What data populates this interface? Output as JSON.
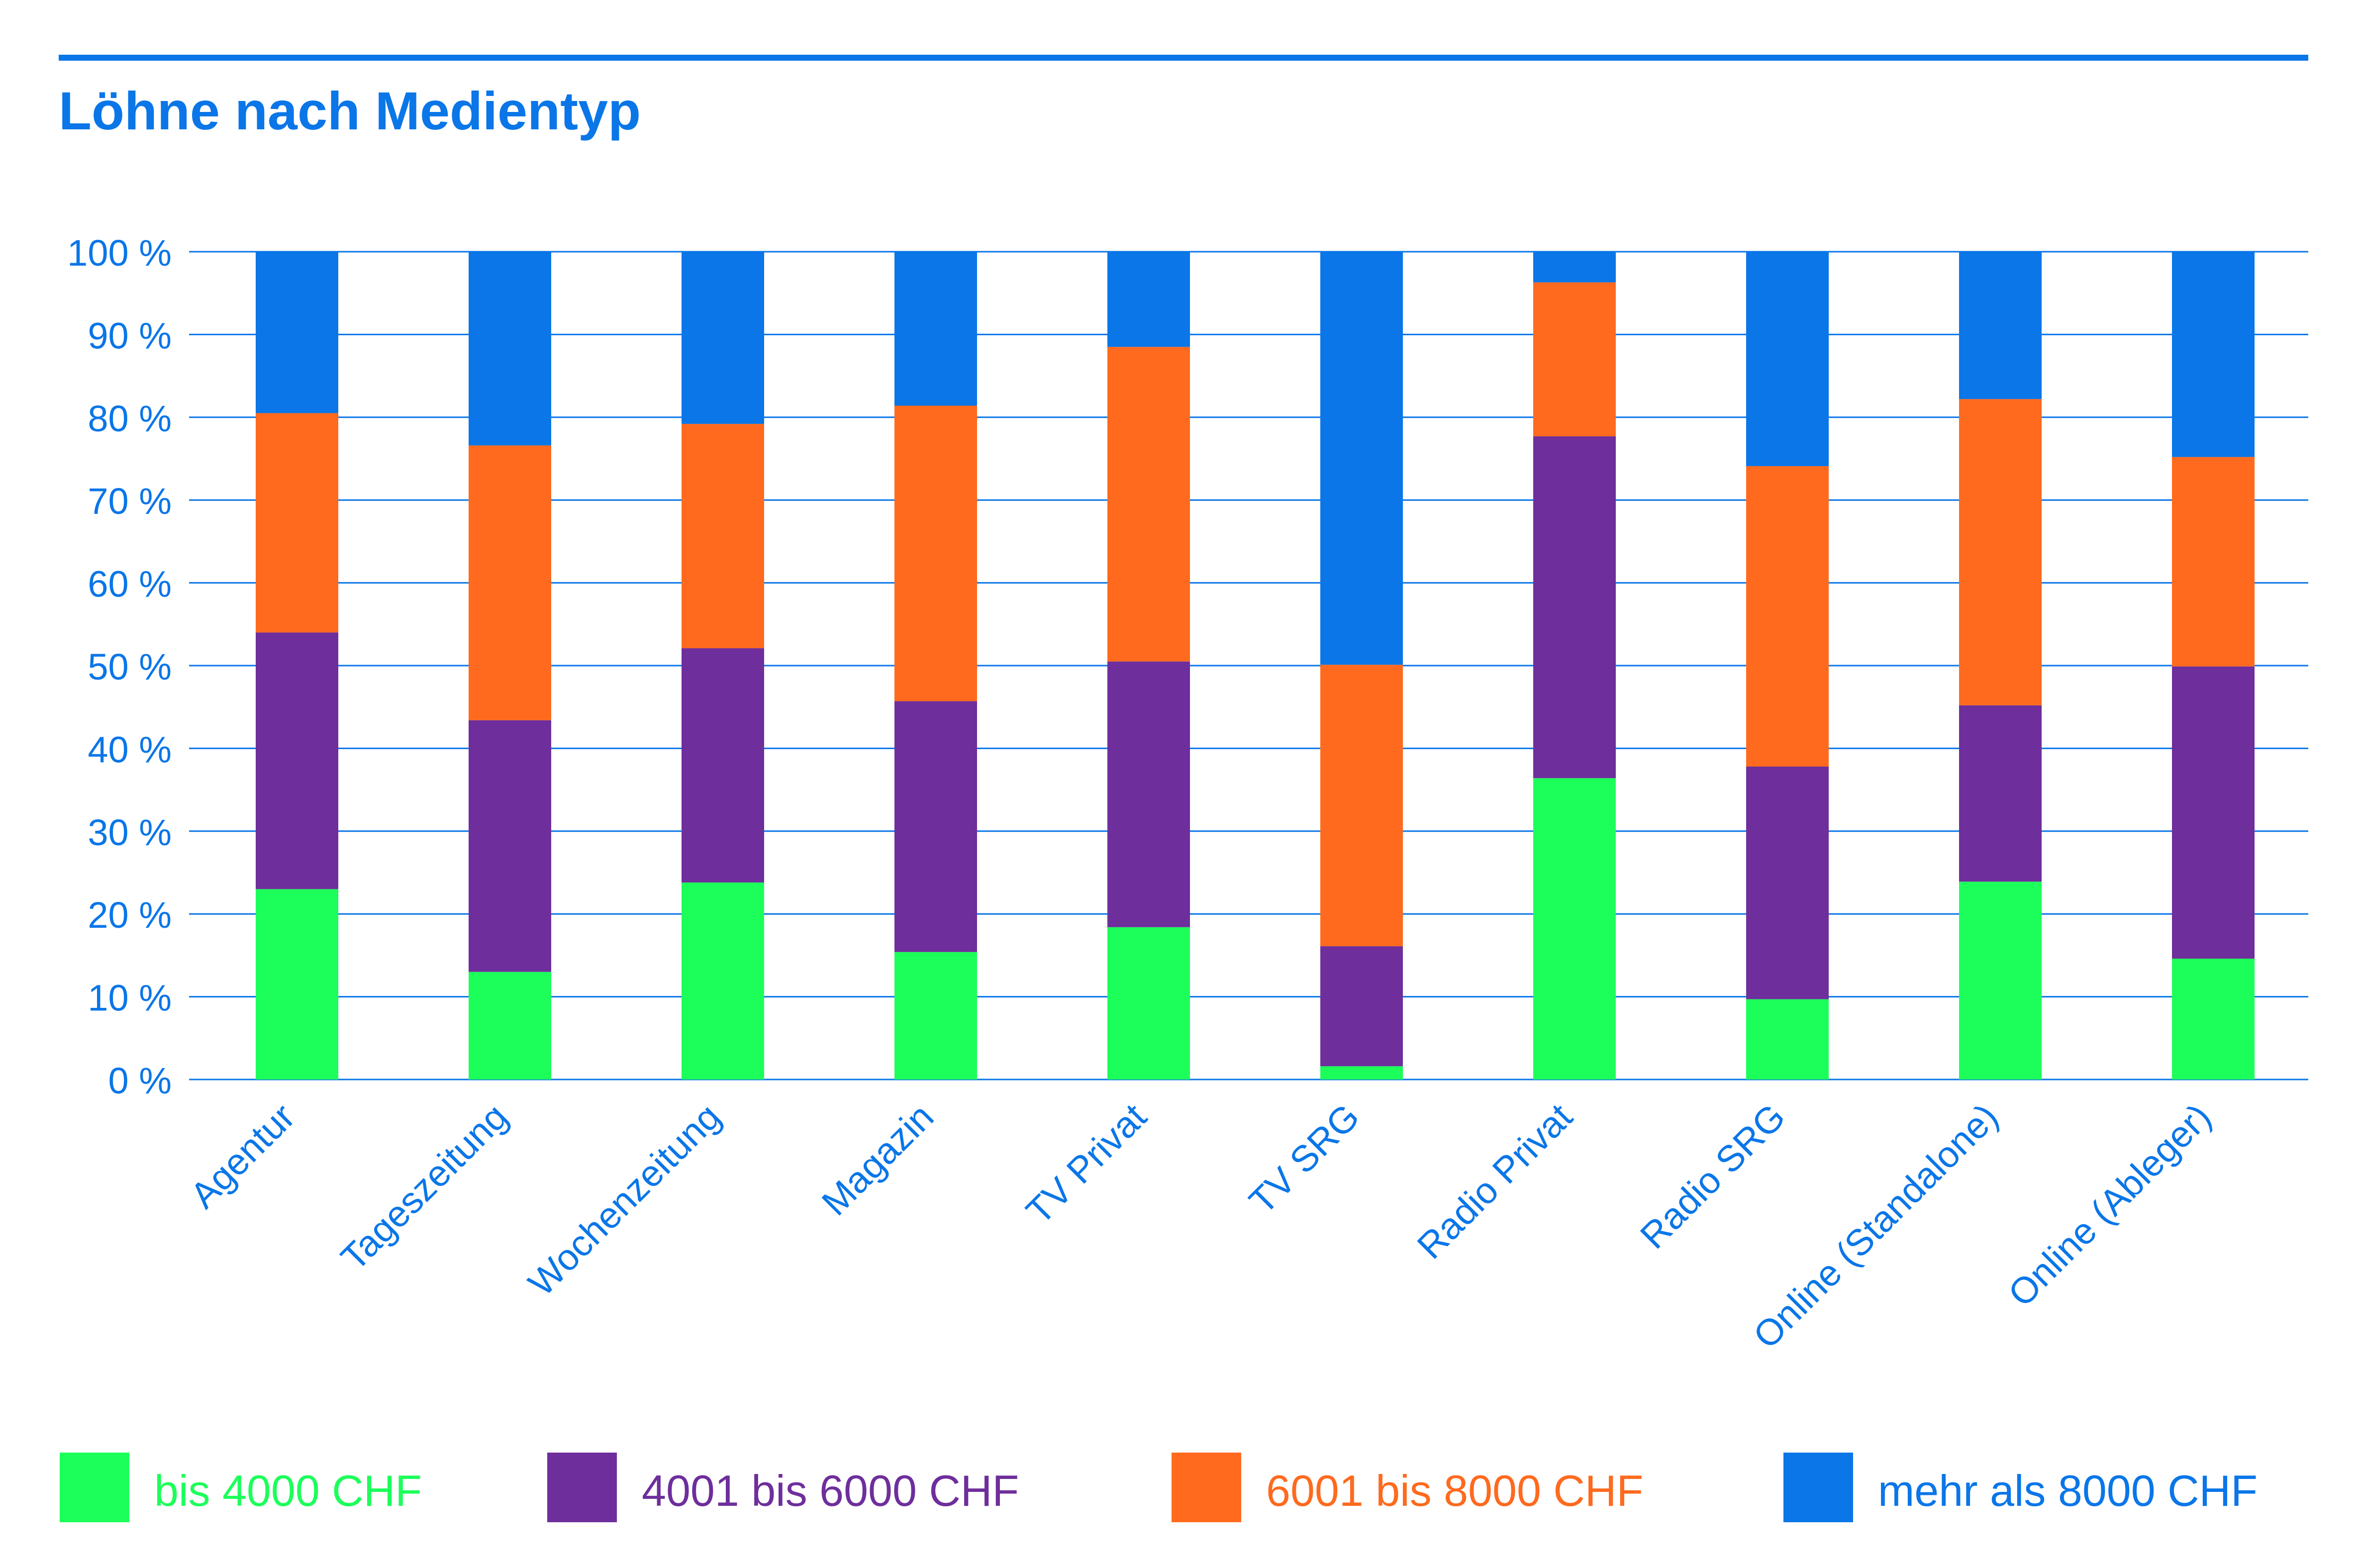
{
  "title": "Löhne nach Medientyp",
  "colors": {
    "accent": "#0A76E8",
    "series": [
      "#1CFF5A",
      "#6E2E9C",
      "#FF6A1E",
      "#0A76E8"
    ]
  },
  "chart_data": {
    "type": "bar",
    "stacked": true,
    "title": "Löhne nach Medientyp",
    "xlabel": "",
    "ylabel": "",
    "ylim": [
      0,
      100
    ],
    "y_ticks": [
      "0 %",
      "10 %",
      "20 %",
      "30 %",
      "40 %",
      "50 %",
      "60 %",
      "70 %",
      "80 %",
      "90 %",
      "100 %"
    ],
    "grid": true,
    "legend_position": "bottom",
    "categories": [
      "Agentur",
      "Tageszeitung",
      "Wochenzeitung",
      "Magazin",
      "TV Privat",
      "TV SRG",
      "Radio Privat",
      "Radio SRG",
      "Online (Standalone)",
      "Online (Ableger)"
    ],
    "series": [
      {
        "name": "bis 4000 CHF",
        "color": "#1CFF5A",
        "values": [
          23.0,
          13.0,
          23.8,
          15.4,
          18.4,
          1.6,
          36.4,
          9.7,
          23.9,
          14.6
        ]
      },
      {
        "name": "4001 bis 6000 CHF",
        "color": "#6E2E9C",
        "values": [
          31.0,
          30.4,
          28.3,
          30.3,
          32.1,
          14.5,
          41.3,
          28.1,
          21.3,
          35.3
        ]
      },
      {
        "name": "6001 bis 8000 CHF",
        "color": "#FF6A1E",
        "values": [
          26.5,
          33.2,
          27.1,
          35.7,
          38.0,
          34.0,
          18.6,
          36.3,
          37.0,
          25.3
        ]
      },
      {
        "name": "mehr als 8000 CHF",
        "color": "#0A76E8",
        "values": [
          19.5,
          23.4,
          20.8,
          18.6,
          11.5,
          49.9,
          3.7,
          25.9,
          17.8,
          24.8
        ]
      }
    ]
  }
}
